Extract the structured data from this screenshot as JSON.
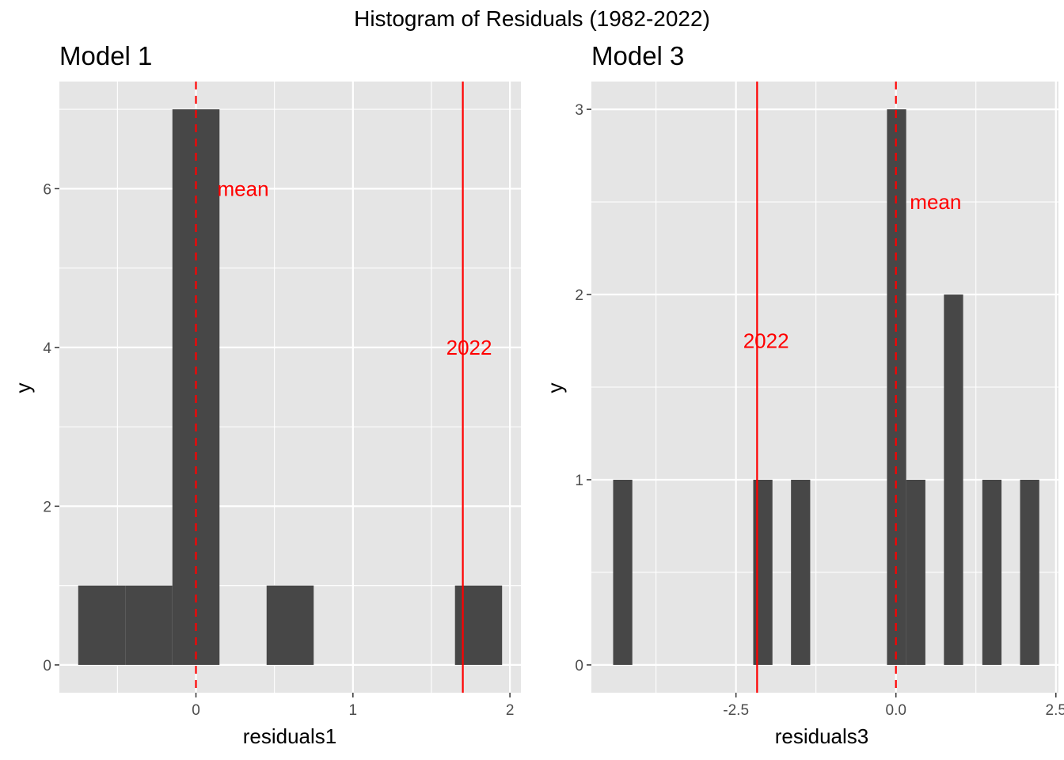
{
  "figure_title": "Histogram of Residuals (1982-2022)",
  "colors": {
    "panel_bg": "#e5e5e5",
    "grid_major": "#ffffff",
    "bar_fill": "#474747",
    "ref_line": "#ff0000",
    "tick_text": "#4d4d4d"
  },
  "chart_data": [
    {
      "type": "bar",
      "title": "Model 1",
      "xlabel": "residuals1",
      "ylabel": "y",
      "xlim": [
        -0.87,
        2.07
      ],
      "ylim": [
        -0.35,
        7.35
      ],
      "xticks": [
        0,
        1,
        2
      ],
      "xtick_labels": [
        "0",
        "1",
        "2"
      ],
      "yticks": [
        0,
        2,
        4,
        6
      ],
      "ytick_labels": [
        "0",
        "2",
        "4",
        "6"
      ],
      "bars": [
        {
          "x0": -0.75,
          "x1": -0.45,
          "count": 1
        },
        {
          "x0": -0.45,
          "x1": -0.15,
          "count": 1
        },
        {
          "x0": -0.15,
          "x1": 0.15,
          "count": 7
        },
        {
          "x0": 0.45,
          "x1": 0.75,
          "count": 1
        },
        {
          "x0": 1.65,
          "x1": 1.95,
          "count": 1
        }
      ],
      "reference_lines": [
        {
          "label": "mean",
          "x": 0.0,
          "style": "dashed",
          "label_x": 0.3,
          "label_y": 6.0
        },
        {
          "label": "2022",
          "x": 1.7,
          "style": "solid",
          "label_x": 1.74,
          "label_y": 4.0
        }
      ]
    },
    {
      "type": "bar",
      "title": "Model 3",
      "xlabel": "residuals3",
      "ylabel": "y",
      "xlim": [
        -4.76,
        2.54
      ],
      "ylim": [
        -0.15,
        3.15
      ],
      "xticks": [
        -2.5,
        0.0,
        2.5
      ],
      "xtick_labels": [
        "-2.5",
        "0.0",
        "2.5"
      ],
      "yticks": [
        0,
        1,
        2,
        3
      ],
      "ytick_labels": [
        "0",
        "1",
        "2",
        "3"
      ],
      "bars": [
        {
          "x0": -4.42,
          "x1": -4.12,
          "count": 1
        },
        {
          "x0": -2.23,
          "x1": -1.93,
          "count": 1
        },
        {
          "x0": -1.64,
          "x1": -1.34,
          "count": 1
        },
        {
          "x0": -0.14,
          "x1": 0.16,
          "count": 3
        },
        {
          "x0": 0.16,
          "x1": 0.46,
          "count": 1
        },
        {
          "x0": 0.75,
          "x1": 1.05,
          "count": 2
        },
        {
          "x0": 1.35,
          "x1": 1.65,
          "count": 1
        },
        {
          "x0": 1.94,
          "x1": 2.24,
          "count": 1
        }
      ],
      "reference_lines": [
        {
          "label": "mean",
          "x": 0.0,
          "style": "dashed",
          "label_x": 0.62,
          "label_y": 2.5
        },
        {
          "label": "2022",
          "x": -2.17,
          "style": "solid",
          "label_x": -2.03,
          "label_y": 1.75
        }
      ]
    }
  ]
}
